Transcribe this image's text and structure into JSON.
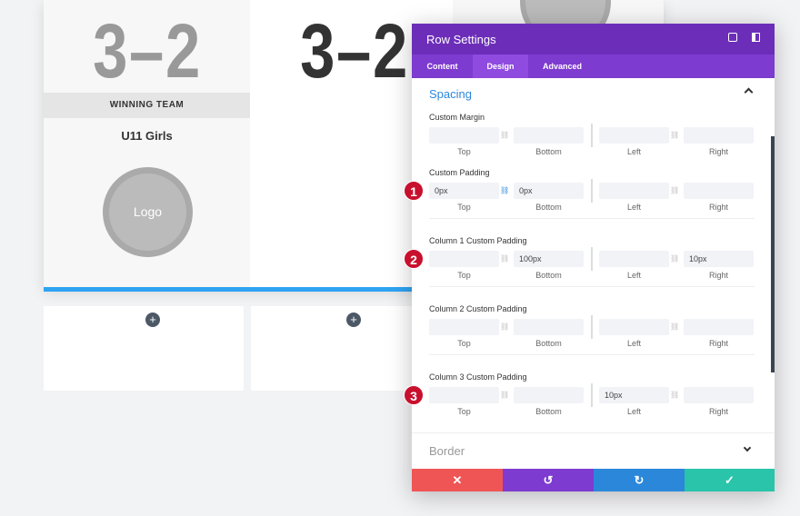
{
  "background": {
    "score_left": "3–2",
    "score_middle": "3–2",
    "team_label": "WINNING TEAM",
    "team_name": "U11 Girls",
    "logo": "Logo"
  },
  "panel": {
    "title": "Row Settings",
    "tabs": [
      "Content",
      "Design",
      "Advanced"
    ],
    "active_tab": 1,
    "section": "Spacing",
    "side_labels": [
      "Top",
      "Bottom",
      "Left",
      "Right"
    ],
    "groups": [
      {
        "label": "Custom Margin",
        "marker": null,
        "values": [
          null,
          null,
          null,
          null
        ]
      },
      {
        "label": "Custom Padding",
        "marker": "1",
        "values": [
          "0px",
          "0px",
          null,
          null
        ]
      },
      {
        "label": "Column 1 Custom Padding",
        "marker": "2",
        "values": [
          null,
          "100px",
          null,
          "10px"
        ]
      },
      {
        "label": "Column 2 Custom Padding",
        "marker": null,
        "values": [
          null,
          null,
          null,
          null
        ]
      },
      {
        "label": "Column 3 Custom Padding",
        "marker": "3",
        "values": [
          null,
          null,
          "10px",
          null
        ]
      }
    ],
    "next_section": "Border"
  }
}
